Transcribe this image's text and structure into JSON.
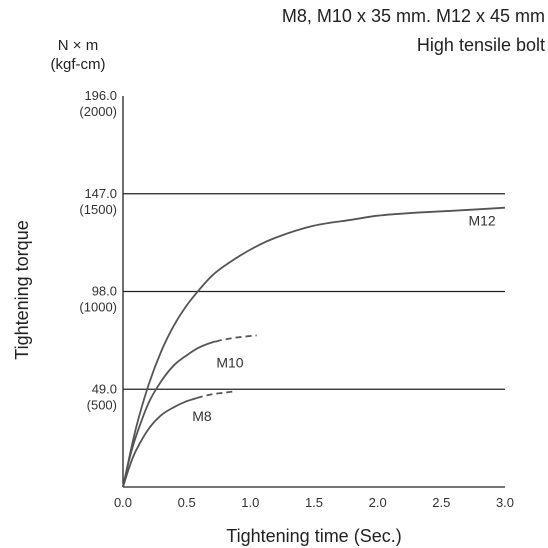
{
  "chart_data": {
    "type": "line",
    "title": "M8, M10 x 35 mm. M12 x 45 mm",
    "subtitle": "High tensile bolt",
    "xlabel": "Tightening time (Sec.)",
    "ylabel": "Tightening torque",
    "y_unit_line1": "N × m",
    "y_unit_line2": "(kgf-cm)",
    "xlim": [
      0,
      3.0
    ],
    "ylim": [
      0,
      196.0
    ],
    "x_ticks": [
      {
        "value": 0.0,
        "label": "0.0"
      },
      {
        "value": 0.5,
        "label": "0.5"
      },
      {
        "value": 1.0,
        "label": "1.0"
      },
      {
        "value": 1.5,
        "label": "1.5"
      },
      {
        "value": 2.0,
        "label": "2.0"
      },
      {
        "value": 2.5,
        "label": "2.5"
      },
      {
        "value": 3.0,
        "label": "3.0"
      }
    ],
    "y_ticks": [
      {
        "value": 49.0,
        "label": "49.0",
        "sublabel": "(500)"
      },
      {
        "value": 98.0,
        "label": "98.0",
        "sublabel": "(1000)"
      },
      {
        "value": 147.0,
        "label": "147.0",
        "sublabel": "(1500)"
      },
      {
        "value": 196.0,
        "label": "196.0",
        "sublabel": "(2000)"
      }
    ],
    "grid": "horizontal",
    "series": [
      {
        "name": "M12",
        "x": [
          0,
          0.1,
          0.2,
          0.3,
          0.4,
          0.5,
          0.6,
          0.7,
          0.8,
          1.0,
          1.2,
          1.5,
          1.8,
          2.0,
          2.3,
          2.6,
          3.0
        ],
        "y": [
          0,
          29,
          51,
          68,
          81,
          91,
          99,
          106,
          111,
          119,
          125,
          131,
          134,
          136,
          137.5,
          138.5,
          140
        ],
        "dashed_from_x": null
      },
      {
        "name": "M10",
        "x": [
          0,
          0.05,
          0.1,
          0.2,
          0.3,
          0.4,
          0.5,
          0.6,
          0.7,
          0.8,
          0.9,
          1.05
        ],
        "y": [
          0,
          14,
          25,
          42,
          53,
          61,
          66,
          70,
          72.5,
          74,
          75,
          76
        ],
        "dashed_from_x": 0.73
      },
      {
        "name": "M8",
        "x": [
          0,
          0.05,
          0.1,
          0.2,
          0.3,
          0.4,
          0.5,
          0.6,
          0.7,
          0.8,
          0.88
        ],
        "y": [
          0,
          10,
          18,
          29,
          36,
          40,
          43,
          45,
          46.5,
          47.3,
          48
        ],
        "dashed_from_x": 0.58
      }
    ],
    "colors": {
      "curve": "#555555",
      "grid": "#222222",
      "axis": "#222222"
    }
  }
}
